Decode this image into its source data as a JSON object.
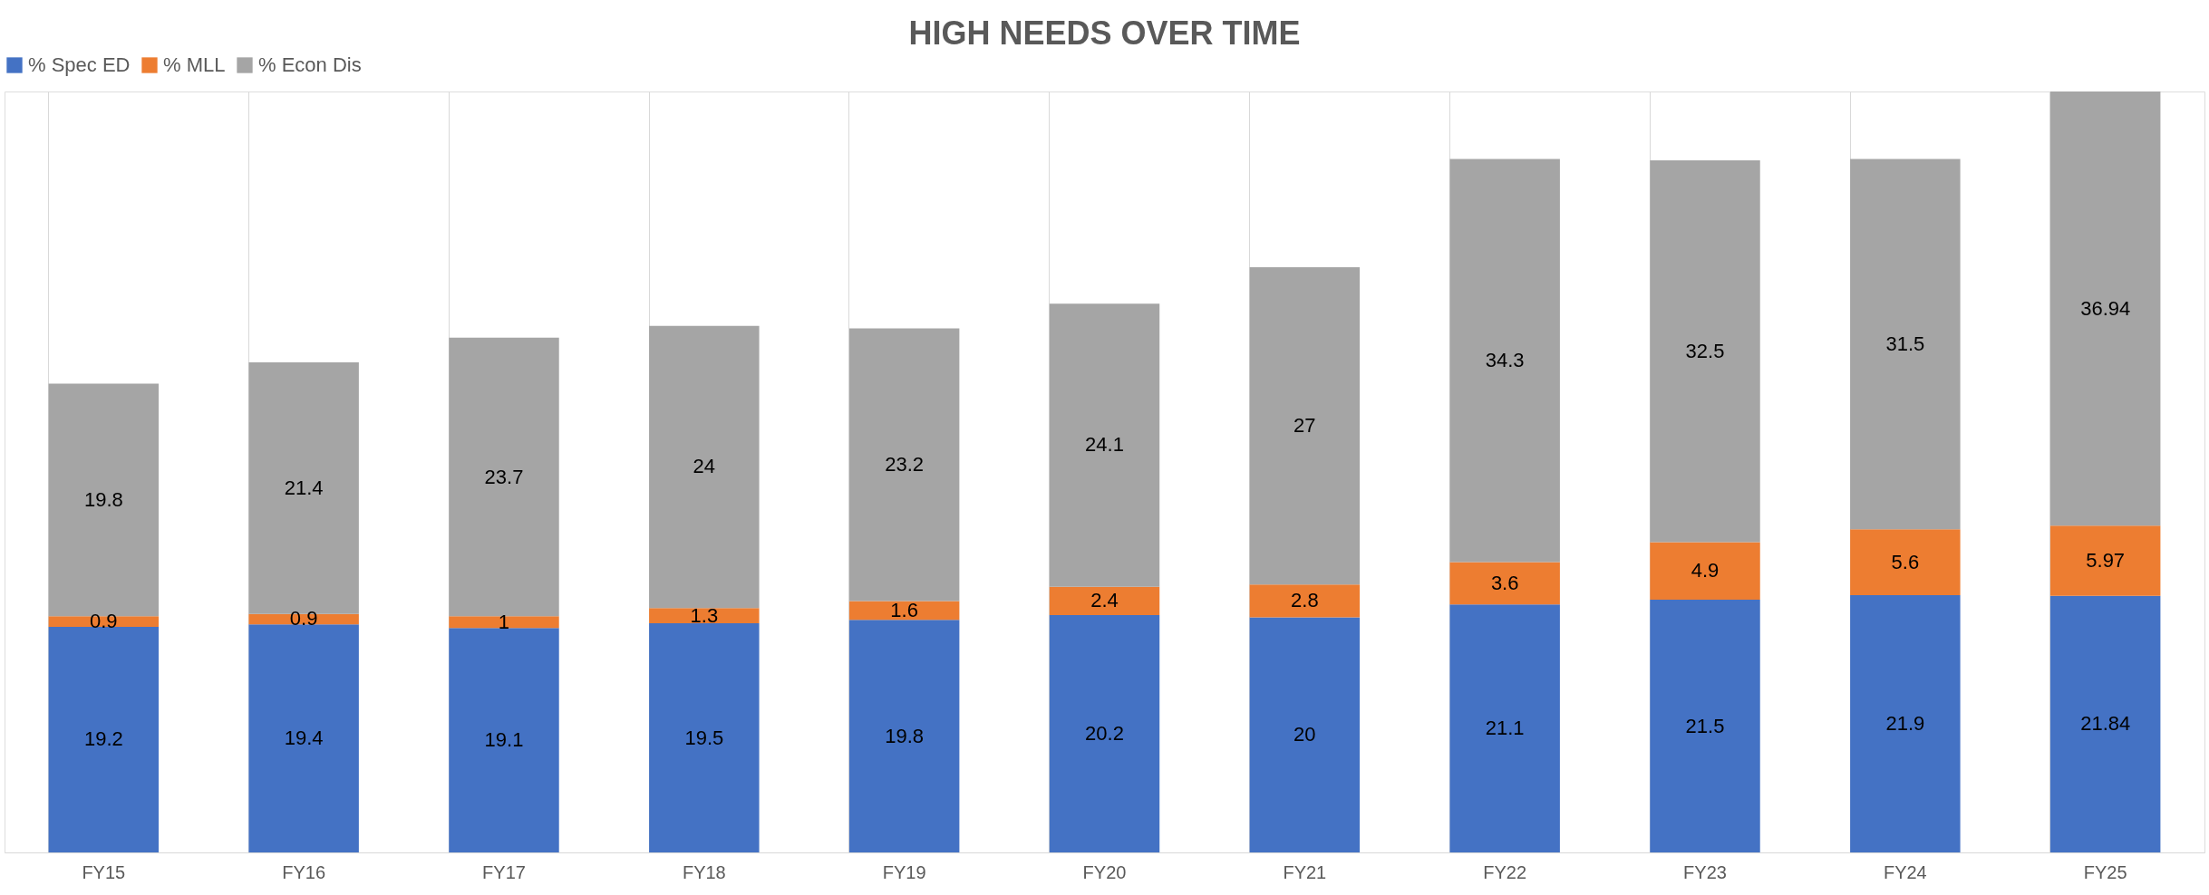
{
  "chart_data": {
    "type": "bar",
    "title": "HIGH NEEDS OVER TIME",
    "categories": [
      "FY15",
      "FY16",
      "FY17",
      "FY18",
      "FY19",
      "FY20",
      "FY21",
      "FY22",
      "FY23",
      "FY24",
      "FY25"
    ],
    "series": [
      {
        "name": "% Spec ED",
        "color": "#4472c4",
        "values": [
          19.2,
          19.4,
          19.1,
          19.5,
          19.8,
          20.2,
          20,
          21.1,
          21.5,
          21.9,
          21.84
        ]
      },
      {
        "name": "% MLL",
        "color": "#ed7d31",
        "values": [
          0.9,
          0.9,
          1,
          1.3,
          1.6,
          2.4,
          2.8,
          3.6,
          4.9,
          5.6,
          5.97
        ]
      },
      {
        "name": "% Econ Dis",
        "color": "#a5a5a5",
        "values": [
          19.8,
          21.4,
          23.7,
          24,
          23.2,
          24.1,
          27,
          34.3,
          32.5,
          31.5,
          36.94
        ]
      }
    ],
    "stacked": true,
    "data_labels": true,
    "legend": "top",
    "grid": "x"
  }
}
